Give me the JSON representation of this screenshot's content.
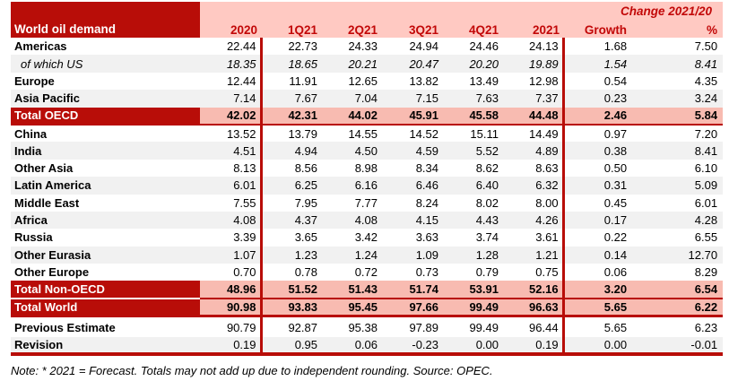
{
  "table": {
    "title": "World oil demand",
    "change_header": "Change 2021/20",
    "columns": [
      "2020",
      "1Q21",
      "2Q21",
      "3Q21",
      "4Q21",
      "2021",
      "Growth",
      "%"
    ],
    "rows": [
      {
        "label": "Americas",
        "style": "plain",
        "values": [
          "22.44",
          "22.73",
          "24.33",
          "24.94",
          "24.46",
          "24.13",
          "1.68",
          "7.50"
        ]
      },
      {
        "label": "of which US",
        "style": "us",
        "values": [
          "18.35",
          "18.65",
          "20.21",
          "20.47",
          "20.20",
          "19.89",
          "1.54",
          "8.41"
        ]
      },
      {
        "label": "Europe",
        "style": "plain",
        "values": [
          "12.44",
          "11.91",
          "12.65",
          "13.82",
          "13.49",
          "12.98",
          "0.54",
          "4.35"
        ]
      },
      {
        "label": "Asia Pacific",
        "style": "shade",
        "values": [
          "7.14",
          "7.67",
          "7.04",
          "7.15",
          "7.63",
          "7.37",
          "0.23",
          "3.24"
        ]
      },
      {
        "label": "Total OECD",
        "style": "total-oecd",
        "values": [
          "42.02",
          "42.31",
          "44.02",
          "45.91",
          "45.58",
          "44.48",
          "2.46",
          "5.84"
        ]
      },
      {
        "label": "China",
        "style": "plain",
        "values": [
          "13.52",
          "13.79",
          "14.55",
          "14.52",
          "15.11",
          "14.49",
          "0.97",
          "7.20"
        ]
      },
      {
        "label": "India",
        "style": "shade",
        "values": [
          "4.51",
          "4.94",
          "4.50",
          "4.59",
          "5.52",
          "4.89",
          "0.38",
          "8.41"
        ]
      },
      {
        "label": "Other Asia",
        "style": "plain",
        "values": [
          "8.13",
          "8.56",
          "8.98",
          "8.34",
          "8.62",
          "8.63",
          "0.50",
          "6.10"
        ]
      },
      {
        "label": "Latin America",
        "style": "shade",
        "values": [
          "6.01",
          "6.25",
          "6.16",
          "6.46",
          "6.40",
          "6.32",
          "0.31",
          "5.09"
        ]
      },
      {
        "label": "Middle East",
        "style": "plain",
        "values": [
          "7.55",
          "7.95",
          "7.77",
          "8.24",
          "8.02",
          "8.00",
          "0.45",
          "6.01"
        ]
      },
      {
        "label": "Africa",
        "style": "shade",
        "values": [
          "4.08",
          "4.37",
          "4.08",
          "4.15",
          "4.43",
          "4.26",
          "0.17",
          "4.28"
        ]
      },
      {
        "label": "Russia",
        "style": "plain",
        "values": [
          "3.39",
          "3.65",
          "3.42",
          "3.63",
          "3.74",
          "3.61",
          "0.22",
          "6.55"
        ]
      },
      {
        "label": "Other Eurasia",
        "style": "shade",
        "values": [
          "1.07",
          "1.23",
          "1.24",
          "1.09",
          "1.28",
          "1.21",
          "0.14",
          "12.70"
        ]
      },
      {
        "label": "Other Europe",
        "style": "plain",
        "values": [
          "0.70",
          "0.78",
          "0.72",
          "0.73",
          "0.79",
          "0.75",
          "0.06",
          "8.29"
        ]
      },
      {
        "label": "Total Non-OECD",
        "style": "total",
        "values": [
          "48.96",
          "51.52",
          "51.43",
          "51.74",
          "53.91",
          "52.16",
          "3.20",
          "6.54"
        ]
      },
      {
        "label": "Total World",
        "style": "total-world",
        "values": [
          "90.98",
          "93.83",
          "95.45",
          "97.66",
          "99.49",
          "96.63",
          "5.65",
          "6.22"
        ]
      },
      {
        "label": "Previous Estimate",
        "style": "prev",
        "values": [
          "90.79",
          "92.87",
          "95.38",
          "97.89",
          "99.49",
          "96.44",
          "5.65",
          "6.23"
        ]
      },
      {
        "label": "Revision",
        "style": "rev",
        "values": [
          "0.19",
          "0.95",
          "0.06",
          "-0.23",
          "0.00",
          "0.19",
          "0.00",
          "-0.01"
        ]
      }
    ],
    "note": "Note: * 2021 = Forecast. Totals may not add up due to independent rounding. Source: OPEC."
  },
  "colors": {
    "dark_red": "#b80d08",
    "header_text_red": "#c20808",
    "header_pink": "#ffc9c2",
    "total_row_pink": "#f8bbb1",
    "alt_row_gray": "#f1f1f1"
  }
}
